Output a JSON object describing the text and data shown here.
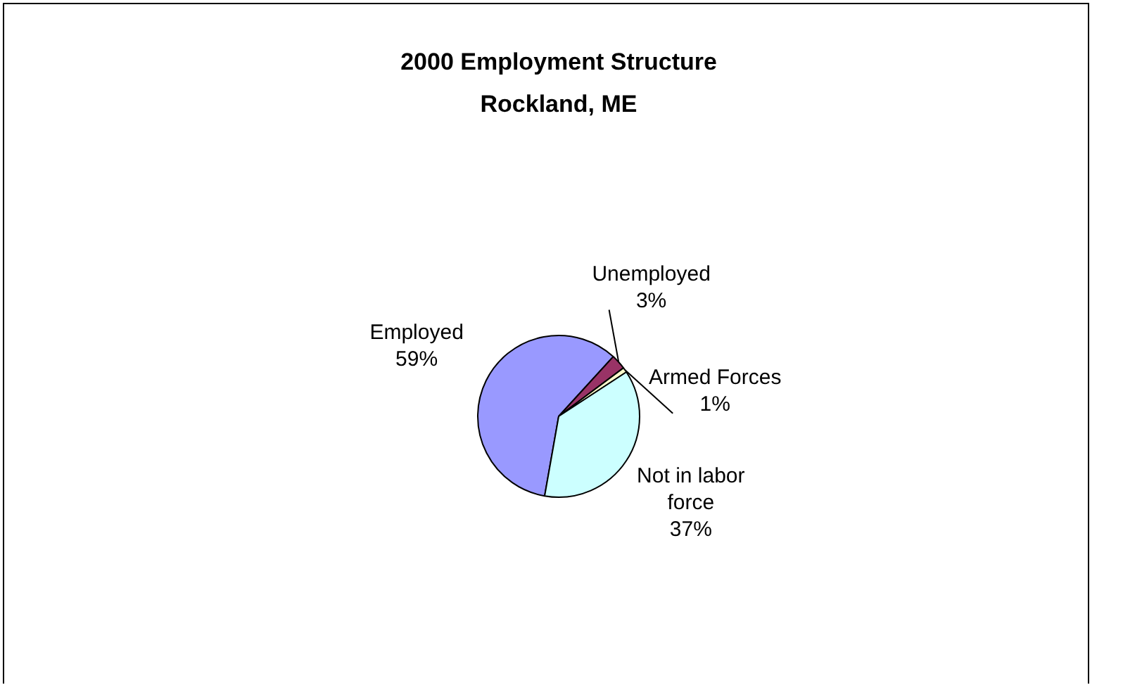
{
  "chart_data": {
    "type": "pie",
    "title": "2000 Employment Structure\nRockland, ME",
    "categories": [
      "Employed",
      "Unemployed",
      "Armed Forces",
      "Not in labor force"
    ],
    "values": [
      59,
      3,
      1,
      37
    ],
    "colors": [
      "#9999ff",
      "#993366",
      "#ffffcc",
      "#ccffff"
    ],
    "value_labels": [
      "59%",
      "3%",
      "1%",
      "37%"
    ],
    "legend": false
  }
}
